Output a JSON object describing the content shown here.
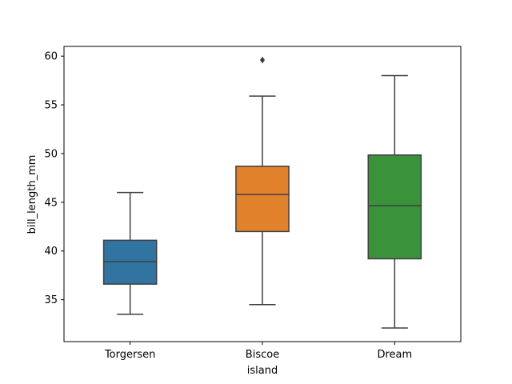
{
  "chart_data": {
    "type": "box",
    "xlabel": "island",
    "ylabel": "bill_length_mm",
    "ylim": [
      30.7,
      61.0
    ],
    "yticks": [
      35,
      40,
      45,
      50,
      55,
      60
    ],
    "ytick_labels": [
      "35",
      "40",
      "45",
      "50",
      "55",
      "60"
    ],
    "categories": [
      "Torgersen",
      "Biscoe",
      "Dream"
    ],
    "boxes": [
      {
        "category": "Torgersen",
        "whisker_low": 33.5,
        "q1": 36.6,
        "median": 38.9,
        "q3": 41.1,
        "whisker_high": 46.0,
        "outliers": [],
        "color": "#3274a1"
      },
      {
        "category": "Biscoe",
        "whisker_low": 34.5,
        "q1": 42.0,
        "median": 45.8,
        "q3": 48.7,
        "whisker_high": 55.9,
        "outliers": [
          59.6
        ],
        "color": "#e1812c"
      },
      {
        "category": "Dream",
        "whisker_low": 32.1,
        "q1": 39.2,
        "median": 44.65,
        "q3": 49.85,
        "whisker_high": 58.0,
        "outliers": [],
        "color": "#3a923a"
      }
    ],
    "grid": false,
    "legend": "none"
  }
}
